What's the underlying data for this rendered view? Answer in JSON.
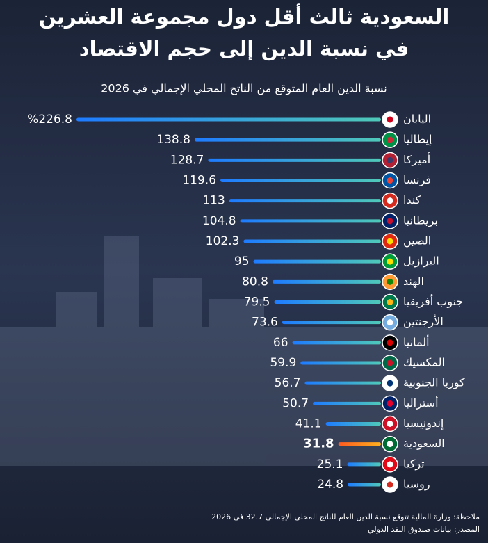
{
  "chart_data": {
    "type": "hbar",
    "title": [
      "السعودية ثالث أقل دول مجموعة العشرين",
      "في نسبة الدين إلى حجم الاقتصاد"
    ],
    "subtitle": "نسبة الدين العام المتوقع من الناتج المحلي الإجمالي في 2026",
    "categories": [
      "اليابان",
      "إيطاليا",
      "أميركا",
      "فرنسا",
      "كندا",
      "بريطانيا",
      "الصين",
      "البرازيل",
      "الهند",
      "جنوب أفريقيا",
      "الأرجنتين",
      "ألمانيا",
      "المكسيك",
      "كوريا الجنوبية",
      "أستراليا",
      "إندونيسيا",
      "السعودية",
      "تركيا",
      "روسيا"
    ],
    "values": [
      226.8,
      138.8,
      128.7,
      119.6,
      113,
      104.8,
      102.3,
      95,
      80.8,
      79.5,
      73.6,
      66,
      59.9,
      56.7,
      50.7,
      41.1,
      31.8,
      25.1,
      24.8
    ],
    "value_labels": [
      "%226.8",
      "138.8",
      "128.7",
      "119.6",
      "113",
      "104.8",
      "102.3",
      "95",
      "80.8",
      "79.5",
      "73.6",
      "66",
      "59.9",
      "56.7",
      "50.7",
      "41.1",
      "31.8",
      "25.1",
      "24.8"
    ],
    "color": [
      "#1e7bff",
      "#4fc9b8"
    ],
    "highlight": "السعودية",
    "highlight_color": [
      "#ff5a1f",
      "#ffb21e"
    ],
    "notes": [
      "ملاحظة: وزارة المالية تتوقع نسبة الدين العام للناتج المحلي الإجمالي 32.7 في 2026",
      "المصدر: بيانات صندوق النقد الدولي"
    ]
  }
}
